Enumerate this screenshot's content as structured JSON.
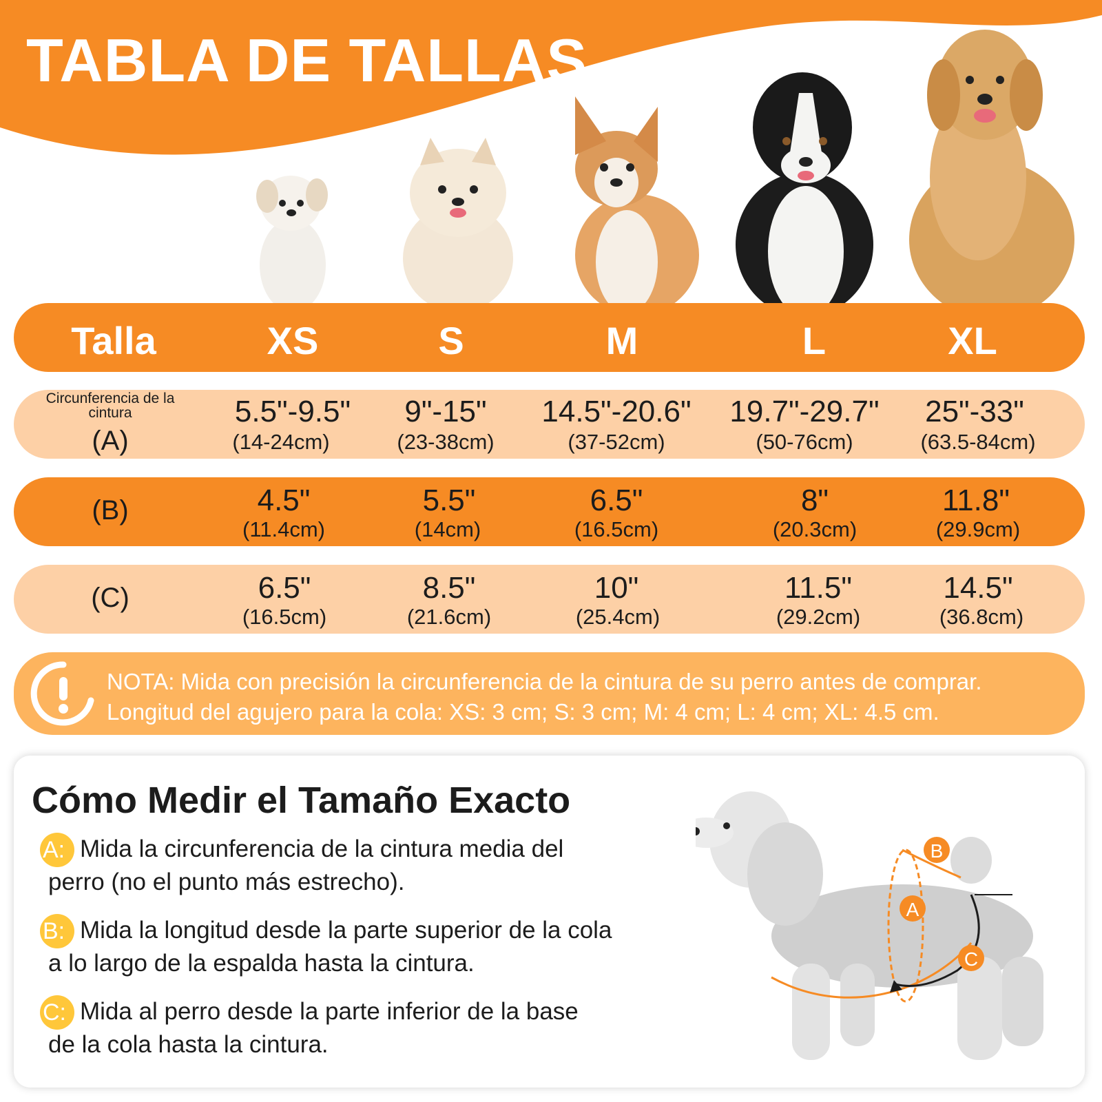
{
  "title": "TABLA DE TALLAS",
  "colors": {
    "accent": "#f68b24",
    "light_row": "#fdd0a6",
    "note_bg": "#fdb45e",
    "badge": "#ffc73a"
  },
  "table": {
    "header_label": "Talla",
    "sizes": [
      "XS",
      "S",
      "M",
      "L",
      "XL"
    ],
    "row_a": {
      "label_small": "Circunferencia de la cintura",
      "label": "(A)",
      "values": [
        {
          "in": "5.5\"-9.5\"",
          "cm": "(14-24cm)"
        },
        {
          "in": "9\"-15\"",
          "cm": "(23-38cm)"
        },
        {
          "in": "14.5\"-20.6\"",
          "cm": "(37-52cm)"
        },
        {
          "in": "19.7\"-29.7\"",
          "cm": "(50-76cm)"
        },
        {
          "in": "25\"-33\"",
          "cm": "(63.5-84cm)"
        }
      ]
    },
    "row_b": {
      "label": "(B)",
      "values": [
        {
          "in": "4.5\"",
          "cm": "(11.4cm)"
        },
        {
          "in": "5.5\"",
          "cm": "(14cm)"
        },
        {
          "in": "6.5\"",
          "cm": "(16.5cm)"
        },
        {
          "in": "8\"",
          "cm": "(20.3cm)"
        },
        {
          "in": "11.8\"",
          "cm": "(29.9cm)"
        }
      ]
    },
    "row_c": {
      "label": "(C)",
      "values": [
        {
          "in": "6.5\"",
          "cm": "(16.5cm)"
        },
        {
          "in": "8.5\"",
          "cm": "(21.6cm)"
        },
        {
          "in": "10\"",
          "cm": "(25.4cm)"
        },
        {
          "in": "11.5\"",
          "cm": "(29.2cm)"
        },
        {
          "in": "14.5\"",
          "cm": "(36.8cm)"
        }
      ]
    }
  },
  "note": {
    "icon": "exclamation-circle-icon",
    "line1": "NOTA: Mida con precisión la circunferencia de la cintura de su perro antes de comprar.",
    "line2": "Longitud del agujero para la cola: XS: 3 cm; S: 3 cm; M: 4 cm; L: 4 cm; XL: 4.5 cm."
  },
  "measure": {
    "title": "Cómo Medir el Tamaño Exacto",
    "steps": [
      {
        "badge": "A:",
        "line1": "Mida la circunferencia de la cintura media del",
        "line2": "perro (no el punto más estrecho)."
      },
      {
        "badge": "B:",
        "line1": "Mida la longitud desde la parte superior de la cola",
        "line2": "a lo largo de la espalda hasta la cintura."
      },
      {
        "badge": "C:",
        "line1": " Mida al perro desde la parte inferior de la base",
        "line2": "de la cola hasta la cintura."
      }
    ],
    "diagram_labels": {
      "a": "A",
      "b": "B",
      "c": "C"
    }
  }
}
